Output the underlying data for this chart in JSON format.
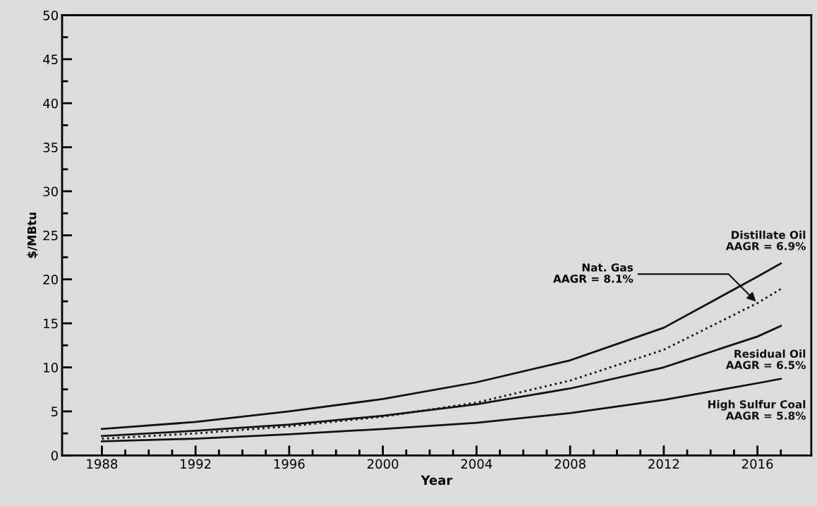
{
  "chart_data": {
    "type": "line",
    "xlabel": "Year",
    "ylabel": "$/MBtu",
    "xlim": [
      1986.3,
      2018.3
    ],
    "xticks": [
      {
        "value": 1988,
        "label": "1988"
      },
      {
        "value": 1989,
        "label": null
      },
      {
        "value": 1990,
        "label": null
      },
      {
        "value": 1991,
        "label": null
      },
      {
        "value": 1992,
        "label": "1992"
      },
      {
        "value": 1993,
        "label": null
      },
      {
        "value": 1994,
        "label": null
      },
      {
        "value": 1995,
        "label": null
      },
      {
        "value": 1996,
        "label": "1996"
      },
      {
        "value": 1997,
        "label": null
      },
      {
        "value": 1998,
        "label": null
      },
      {
        "value": 1999,
        "label": null
      },
      {
        "value": 2000,
        "label": "2000"
      },
      {
        "value": 2001,
        "label": null
      },
      {
        "value": 2002,
        "label": null
      },
      {
        "value": 2003,
        "label": null
      },
      {
        "value": 2004,
        "label": "2004"
      },
      {
        "value": 2005,
        "label": null
      },
      {
        "value": 2006,
        "label": null
      },
      {
        "value": 2007,
        "label": null
      },
      {
        "value": 2008,
        "label": "2008"
      },
      {
        "value": 2009,
        "label": null
      },
      {
        "value": 2010,
        "label": null
      },
      {
        "value": 2011,
        "label": null
      },
      {
        "value": 2012,
        "label": "2012"
      },
      {
        "value": 2013,
        "label": null
      },
      {
        "value": 2014,
        "label": null
      },
      {
        "value": 2015,
        "label": null
      },
      {
        "value": 2016,
        "label": "2016"
      },
      {
        "value": 2017,
        "label": null
      }
    ],
    "ylim": [
      0,
      50
    ],
    "yticks": [
      0,
      {
        "value": 2.5,
        "label": null
      },
      5,
      {
        "value": 7.5,
        "label": null
      },
      10,
      {
        "value": 12.5,
        "label": null
      },
      15,
      {
        "value": 17.5,
        "label": null
      },
      20,
      {
        "value": 22.5,
        "label": null
      },
      25,
      {
        "value": 27.5,
        "label": null
      },
      30,
      {
        "value": 32.5,
        "label": null
      },
      35,
      {
        "value": 37.5,
        "label": null
      },
      40,
      {
        "value": 42.5,
        "label": null
      },
      45,
      {
        "value": 47.5,
        "label": null
      },
      50
    ],
    "x": [
      1988,
      1992,
      1996,
      2000,
      2004,
      2008,
      2012,
      2016,
      2017
    ],
    "grid": false,
    "legend": false,
    "marker": "none",
    "series": [
      {
        "name": "Distillate Oil",
        "color": "#111111",
        "line_style": "solid",
        "values": [
          3.0,
          3.8,
          5.0,
          6.4,
          8.3,
          10.8,
          14.5,
          20.3,
          21.8
        ]
      },
      {
        "name": "Nat. Gas",
        "color": "#111111",
        "line_style": "dotted",
        "values": [
          1.9,
          2.5,
          3.3,
          4.4,
          6.0,
          8.5,
          12.0,
          17.3,
          18.9
        ]
      },
      {
        "name": "Residual Oil",
        "color": "#111111",
        "line_style": "solid",
        "values": [
          2.2,
          2.8,
          3.5,
          4.5,
          5.8,
          7.6,
          10.0,
          13.5,
          14.7
        ]
      },
      {
        "name": "High Sulfur Coal",
        "color": "#111111",
        "line_style": "solid",
        "values": [
          1.6,
          1.9,
          2.4,
          3.0,
          3.7,
          4.8,
          6.3,
          8.2,
          8.7
        ]
      }
    ],
    "annotations": [
      "AAGR = 6.9%",
      {
        "text": "AAGR = 8.1%",
        "x": 2016,
        "y": 17.3
      },
      "AAGR = 6.5%",
      "AAGR = 5.8%"
    ]
  }
}
